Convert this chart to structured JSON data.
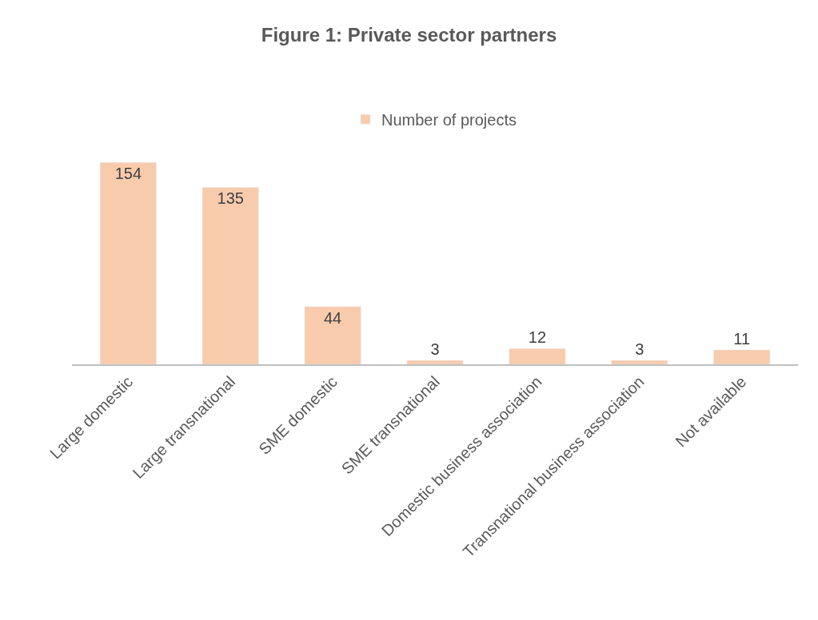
{
  "chart_data": {
    "type": "bar",
    "title": "Figure 1: Private sector partners",
    "categories": [
      "Large domestic",
      "Large transnational",
      "SME domestic",
      "SME transnational",
      "Domestic business association",
      "Transnational business association",
      "Not available"
    ],
    "series": [
      {
        "name": "Number of projects",
        "color": "#f8cbad",
        "values": [
          154,
          135,
          44,
          3,
          12,
          3,
          11
        ]
      }
    ],
    "data_labels": true,
    "legend": "top",
    "tick_labels": "x"
  }
}
